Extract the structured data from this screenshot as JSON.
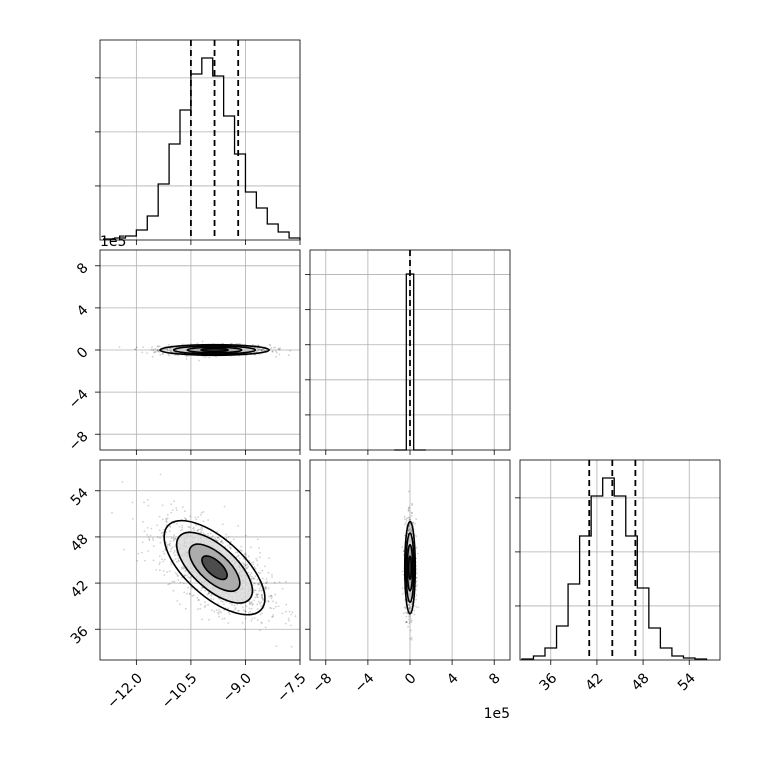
{
  "chart_data": {
    "type": "corner",
    "parameters": 3,
    "panels": [
      {
        "id": "hist-0",
        "type": "histogram",
        "xlim": [
          -13.0,
          -7.5
        ],
        "ylim": [
          0,
          1.0
        ],
        "x": [
          -12.75,
          -12.45,
          -12.15,
          -11.85,
          -11.55,
          -11.25,
          -10.95,
          -10.65,
          -10.35,
          -10.05,
          -9.75,
          -9.45,
          -9.15,
          -8.85,
          -8.55,
          -8.25,
          -7.95,
          -7.65
        ],
        "counts": [
          0.005,
          0.01,
          0.02,
          0.05,
          0.12,
          0.28,
          0.48,
          0.65,
          0.83,
          0.91,
          0.82,
          0.62,
          0.43,
          0.24,
          0.16,
          0.08,
          0.04,
          0.01
        ],
        "quantiles": [
          -10.5,
          -9.85,
          -9.2
        ],
        "xticks": [
          -12.0,
          -10.5,
          -9.0,
          -7.5
        ],
        "yticks_shown": 3
      },
      {
        "id": "scatter-1-0",
        "type": "scatter",
        "xlim": [
          -13.0,
          -7.5
        ],
        "ylim": [
          -9.5,
          9.5
        ],
        "yticks": [
          -8,
          -4,
          0,
          4,
          8
        ],
        "yticklabels": [
          "−8",
          "−4",
          "0",
          "4",
          "8"
        ],
        "y_offset_label": "1e5",
        "center": [
          -9.85,
          0.0
        ],
        "spread": [
          0.75,
          0.25
        ],
        "correlation": 0.0
      },
      {
        "id": "hist-1",
        "type": "histogram",
        "xlim": [
          -9.5,
          9.5
        ],
        "ylim": [
          0,
          1.0
        ],
        "x": [
          -0.5,
          0.5
        ],
        "counts": [
          0.88,
          0.0
        ],
        "quantiles": [
          0.0
        ],
        "yticks_shown": 5
      },
      {
        "id": "scatter-2-0",
        "type": "scatter",
        "xlim": [
          -13.0,
          -7.5
        ],
        "ylim": [
          32.0,
          58.0
        ],
        "xticks": [
          -12.0,
          -10.5,
          -9.0,
          -7.5
        ],
        "xticklabels": [
          "−12.0",
          "−10.5",
          "−9.0",
          "−7.5"
        ],
        "yticks": [
          36,
          42,
          48,
          54
        ],
        "yticklabels": [
          "36",
          "42",
          "48",
          "54"
        ],
        "center": [
          -9.85,
          44.0
        ],
        "spread": [
          0.75,
          3.0
        ],
        "correlation": -0.6
      },
      {
        "id": "scatter-2-1",
        "type": "scatter",
        "xlim": [
          -9.5,
          9.5
        ],
        "ylim": [
          32.0,
          58.0
        ],
        "xticks": [
          -8,
          -4,
          0,
          4,
          8
        ],
        "xticklabels": [
          "−8",
          "−4",
          "0",
          "4",
          "8"
        ],
        "x_offset_label": "1e5",
        "center": [
          0.0,
          44.0
        ],
        "spread": [
          0.25,
          3.0
        ],
        "correlation": 0.0
      },
      {
        "id": "hist-2",
        "type": "histogram",
        "xlim": [
          32.0,
          58.0
        ],
        "ylim": [
          0,
          1.0
        ],
        "x": [
          33,
          34.5,
          36,
          37.5,
          39,
          40.5,
          42,
          43.5,
          45,
          46.5,
          48,
          49.5,
          51,
          52.5,
          54,
          55.5
        ],
        "counts": [
          0.005,
          0.02,
          0.06,
          0.17,
          0.38,
          0.62,
          0.82,
          0.91,
          0.82,
          0.62,
          0.36,
          0.16,
          0.06,
          0.02,
          0.01,
          0.005
        ],
        "quantiles": [
          41.0,
          44.0,
          47.0
        ],
        "xticks": [
          36,
          42,
          48,
          54
        ],
        "xticklabels": [
          "36",
          "42",
          "48",
          "54"
        ],
        "yticks_shown": 3
      }
    ]
  }
}
